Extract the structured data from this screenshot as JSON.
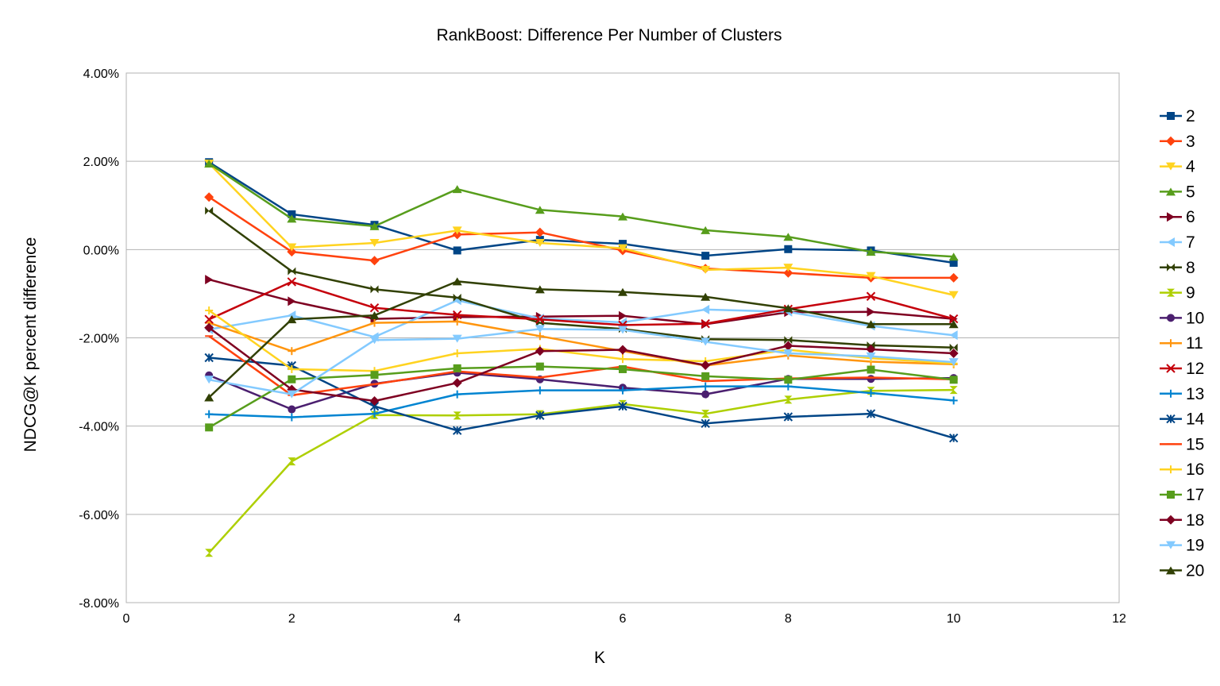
{
  "chart_data": {
    "type": "line",
    "title": "RankBoost: Difference Per Number of Clusters",
    "xlabel": "K",
    "ylabel": "NDCG@K percent difference",
    "xlim": [
      0,
      12
    ],
    "ylim": [
      -8,
      4
    ],
    "x_ticks": [
      "0",
      "2",
      "4",
      "6",
      "8",
      "10",
      "12"
    ],
    "y_ticks": [
      "4.00%",
      "2.00%",
      "0.00%",
      "-2.00%",
      "-4.00%",
      "-6.00%",
      "-8.00%"
    ],
    "grid": "horizontal",
    "legend_position": "right",
    "x": [
      1,
      2,
      3,
      4,
      5,
      6,
      7,
      8,
      9,
      10
    ],
    "series": [
      {
        "name": "2",
        "color": "#004586",
        "marker": "square",
        "values": [
          1.98,
          0.8,
          0.56,
          -0.02,
          0.22,
          0.13,
          -0.14,
          0.01,
          -0.02,
          -0.3
        ]
      },
      {
        "name": "3",
        "color": "#ff420e",
        "marker": "diamond",
        "values": [
          1.19,
          -0.05,
          -0.25,
          0.34,
          0.39,
          -0.02,
          -0.43,
          -0.53,
          -0.64,
          -0.64
        ]
      },
      {
        "name": "4",
        "color": "#ffd320",
        "marker": "triangle-down",
        "values": [
          1.95,
          0.05,
          0.15,
          0.43,
          0.15,
          0.03,
          -0.46,
          -0.41,
          -0.6,
          -1.03
        ]
      },
      {
        "name": "5",
        "color": "#579d1c",
        "marker": "triangle-up",
        "values": [
          1.95,
          0.7,
          0.53,
          1.37,
          0.9,
          0.75,
          0.44,
          0.29,
          -0.05,
          -0.16
        ]
      },
      {
        "name": "6",
        "color": "#7e0021",
        "marker": "triangle-right",
        "values": [
          -0.68,
          -1.17,
          -1.57,
          -1.53,
          -1.52,
          -1.5,
          -1.69,
          -1.42,
          -1.41,
          -1.57
        ]
      },
      {
        "name": "7",
        "color": "#83caff",
        "marker": "triangle-left",
        "values": [
          -1.81,
          -1.49,
          -1.98,
          -1.15,
          -1.56,
          -1.65,
          -1.36,
          -1.41,
          -1.73,
          -1.94
        ]
      },
      {
        "name": "8",
        "color": "#314004",
        "marker": "bowtie",
        "values": [
          0.88,
          -0.49,
          -0.9,
          -1.09,
          -1.66,
          -1.8,
          -2.03,
          -2.05,
          -2.17,
          -2.22
        ]
      },
      {
        "name": "9",
        "color": "#aecf00",
        "marker": "hourglass",
        "values": [
          -6.87,
          -4.8,
          -3.75,
          -3.76,
          -3.73,
          -3.5,
          -3.72,
          -3.4,
          -3.2,
          -3.18
        ]
      },
      {
        "name": "10",
        "color": "#4b1f6f",
        "marker": "circle",
        "values": [
          -2.85,
          -3.62,
          -3.04,
          -2.79,
          -2.94,
          -3.13,
          -3.28,
          -2.93,
          -2.93,
          -2.91
        ]
      },
      {
        "name": "11",
        "color": "#ff950e",
        "marker": "plus",
        "values": [
          -1.66,
          -2.3,
          -1.66,
          -1.63,
          -1.96,
          -2.3,
          -2.63,
          -2.4,
          -2.54,
          -2.6
        ]
      },
      {
        "name": "12",
        "color": "#c5000b",
        "marker": "x",
        "values": [
          -1.58,
          -0.73,
          -1.32,
          -1.48,
          -1.58,
          -1.71,
          -1.68,
          -1.35,
          -1.06,
          -1.57
        ]
      },
      {
        "name": "13",
        "color": "#0084d1",
        "marker": "plus",
        "values": [
          -3.73,
          -3.8,
          -3.72,
          -3.28,
          -3.19,
          -3.19,
          -3.1,
          -3.1,
          -3.25,
          -3.42
        ]
      },
      {
        "name": "14",
        "color": "#004586",
        "marker": "asterisk",
        "values": [
          -2.45,
          -2.63,
          -3.55,
          -4.1,
          -3.76,
          -3.55,
          -3.94,
          -3.79,
          -3.72,
          -4.27
        ]
      },
      {
        "name": "15",
        "color": "#ff420e",
        "marker": "dash",
        "values": [
          -1.96,
          -3.3,
          -3.05,
          -2.76,
          -2.9,
          -2.65,
          -2.98,
          -2.92,
          -2.9,
          -2.94
        ]
      },
      {
        "name": "16",
        "color": "#ffd320",
        "marker": "plus",
        "values": [
          -1.38,
          -2.71,
          -2.75,
          -2.35,
          -2.25,
          -2.48,
          -2.53,
          -2.27,
          -2.46,
          -2.58
        ]
      },
      {
        "name": "17",
        "color": "#579d1c",
        "marker": "square",
        "values": [
          -4.03,
          -2.94,
          -2.84,
          -2.69,
          -2.65,
          -2.71,
          -2.87,
          -2.95,
          -2.72,
          -2.95
        ]
      },
      {
        "name": "18",
        "color": "#7e0021",
        "marker": "diamond",
        "values": [
          -1.77,
          -3.17,
          -3.43,
          -3.02,
          -2.3,
          -2.27,
          -2.62,
          -2.18,
          -2.26,
          -2.35
        ]
      },
      {
        "name": "19",
        "color": "#83caff",
        "marker": "triangle-down",
        "values": [
          -2.95,
          -3.28,
          -2.05,
          -2.02,
          -1.8,
          -1.82,
          -2.09,
          -2.35,
          -2.42,
          -2.55
        ]
      },
      {
        "name": "20",
        "color": "#314004",
        "marker": "triangle-up",
        "values": [
          -3.35,
          -1.58,
          -1.49,
          -0.72,
          -0.9,
          -0.96,
          -1.07,
          -1.33,
          -1.69,
          -1.69
        ]
      }
    ]
  }
}
